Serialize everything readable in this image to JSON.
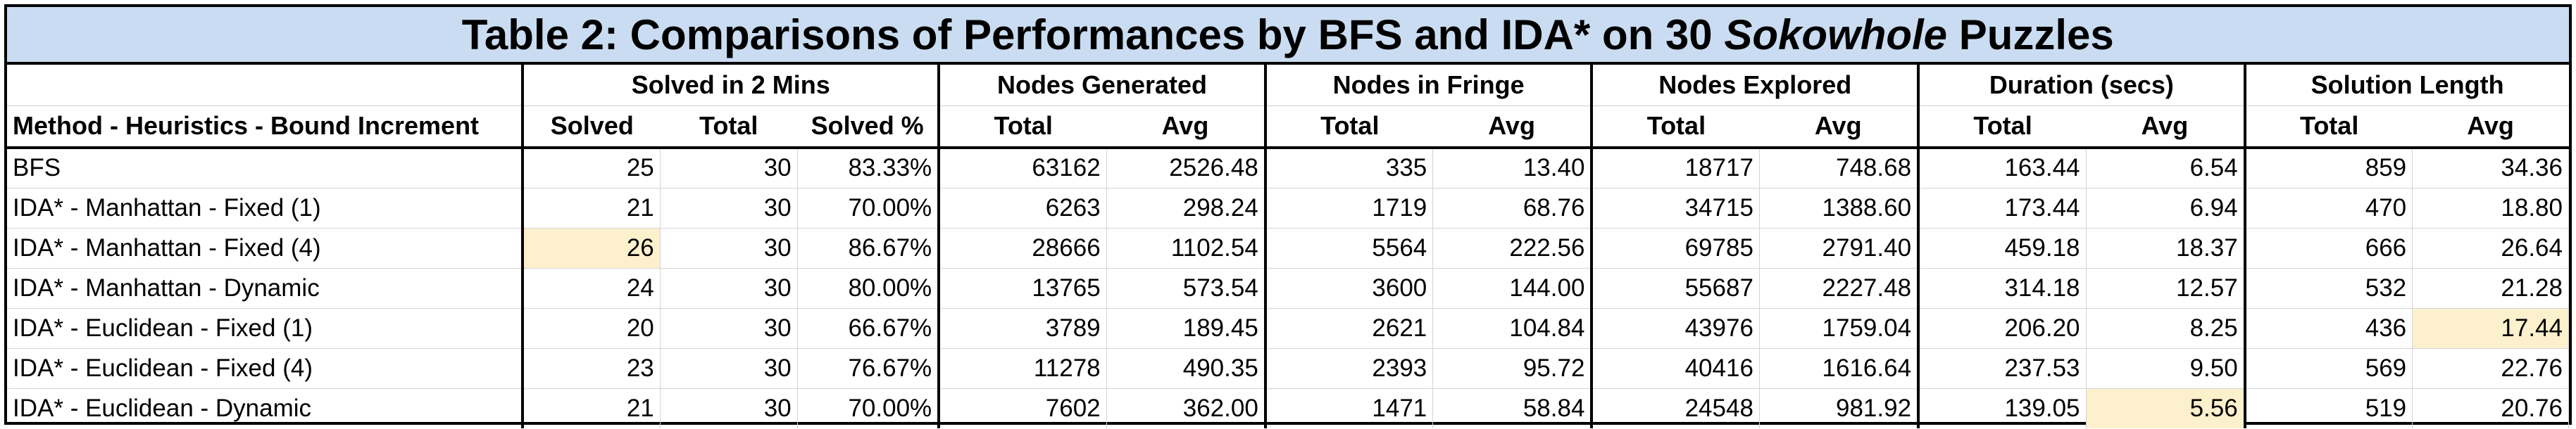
{
  "title": {
    "prefix": "Table 2: Comparisons of Performances by BFS and IDA* on 30 ",
    "italic": "Sokowhole",
    "suffix": " Puzzles"
  },
  "group_headers": [
    "Solved in 2 Mins",
    "Nodes Generated",
    "Nodes in Fringe",
    "Nodes Explored",
    "Duration (secs)",
    "Solution Length"
  ],
  "sub_headers": [
    "Method - Heuristics - Bound Increment",
    "Solved",
    "Total",
    "Solved %",
    "Total",
    "Avg",
    "Total",
    "Avg",
    "Total",
    "Avg",
    "Total",
    "Avg",
    "Total",
    "Avg"
  ],
  "rows": [
    [
      "BFS",
      "25",
      "30",
      "83.33%",
      "63162",
      "2526.48",
      "335",
      "13.40",
      "18717",
      "748.68",
      "163.44",
      "6.54",
      "859",
      "34.36"
    ],
    [
      "IDA* - Manhattan - Fixed (1)",
      "21",
      "30",
      "70.00%",
      "6263",
      "298.24",
      "1719",
      "68.76",
      "34715",
      "1388.60",
      "173.44",
      "6.94",
      "470",
      "18.80"
    ],
    [
      "IDA* - Manhattan - Fixed (4)",
      "26",
      "30",
      "86.67%",
      "28666",
      "1102.54",
      "5564",
      "222.56",
      "69785",
      "2791.40",
      "459.18",
      "18.37",
      "666",
      "26.64"
    ],
    [
      "IDA* - Manhattan - Dynamic",
      "24",
      "30",
      "80.00%",
      "13765",
      "573.54",
      "3600",
      "144.00",
      "55687",
      "2227.48",
      "314.18",
      "12.57",
      "532",
      "21.28"
    ],
    [
      "IDA* - Euclidean - Fixed (1)",
      "20",
      "30",
      "66.67%",
      "3789",
      "189.45",
      "2621",
      "104.84",
      "43976",
      "1759.04",
      "206.20",
      "8.25",
      "436",
      "17.44"
    ],
    [
      "IDA* - Euclidean - Fixed (4)",
      "23",
      "30",
      "76.67%",
      "11278",
      "490.35",
      "2393",
      "95.72",
      "40416",
      "1616.64",
      "237.53",
      "9.50",
      "569",
      "22.76"
    ],
    [
      "IDA* - Euclidean - Dynamic",
      "21",
      "30",
      "70.00%",
      "7602",
      "362.00",
      "1471",
      "58.84",
      "24548",
      "981.92",
      "139.05",
      "5.56",
      "519",
      "20.76"
    ]
  ],
  "highlight_color": "#fdf0cc",
  "title_background": "#c9dcf1",
  "highlighted_cells": [
    [
      2,
      1
    ],
    [
      4,
      13
    ],
    [
      6,
      11
    ]
  ]
}
